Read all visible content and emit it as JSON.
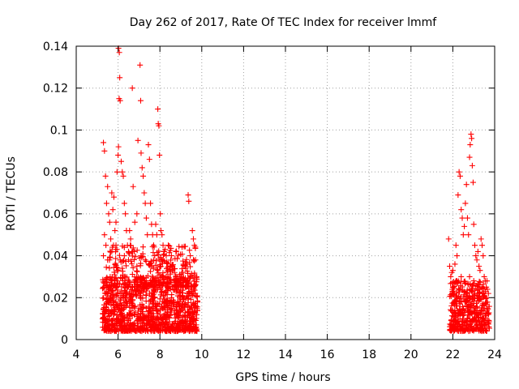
{
  "chart_data": {
    "type": "scatter",
    "title": "Day 262 of 2017, Rate Of TEC Index for receiver lmmf",
    "xlabel": "GPS time / hours",
    "ylabel": "ROTI / TECUs",
    "xlim": [
      4,
      24
    ],
    "ylim": [
      0,
      0.14
    ],
    "x_ticks": [
      "4",
      "6",
      "8",
      "10",
      "12",
      "14",
      "16",
      "18",
      "20",
      "22",
      "24"
    ],
    "y_ticks": [
      "0",
      "0.02",
      "0.04",
      "0.06",
      "0.08",
      "0.1",
      "0.12",
      "0.14"
    ],
    "grid": true,
    "marker": "+",
    "color": "#ff0000",
    "series": [
      {
        "points": [
          [
            5.3,
            0.094
          ],
          [
            5.35,
            0.09
          ],
          [
            5.4,
            0.078
          ],
          [
            5.5,
            0.073
          ],
          [
            5.45,
            0.065
          ],
          [
            5.35,
            0.05
          ],
          [
            5.42,
            0.045
          ],
          [
            5.55,
            0.06
          ],
          [
            5.6,
            0.056
          ],
          [
            5.65,
            0.048
          ],
          [
            5.7,
            0.07
          ],
          [
            5.8,
            0.068
          ],
          [
            5.75,
            0.062
          ],
          [
            5.85,
            0.052
          ],
          [
            5.9,
            0.056
          ],
          [
            5.95,
            0.08
          ],
          [
            6.0,
            0.088
          ],
          [
            6.02,
            0.092
          ],
          [
            6.05,
            0.115
          ],
          [
            6.08,
            0.125
          ],
          [
            6.02,
            0.139
          ],
          [
            6.06,
            0.137
          ],
          [
            6.1,
            0.114
          ],
          [
            6.15,
            0.085
          ],
          [
            6.2,
            0.08
          ],
          [
            6.25,
            0.078
          ],
          [
            6.3,
            0.065
          ],
          [
            6.35,
            0.06
          ],
          [
            6.4,
            0.052
          ],
          [
            6.45,
            0.045
          ],
          [
            6.5,
            0.042
          ],
          [
            6.55,
            0.052
          ],
          [
            6.6,
            0.048
          ],
          [
            6.68,
            0.12
          ],
          [
            6.72,
            0.073
          ],
          [
            6.8,
            0.056
          ],
          [
            6.9,
            0.06
          ],
          [
            6.95,
            0.095
          ],
          [
            7.05,
            0.131
          ],
          [
            7.08,
            0.114
          ],
          [
            7.1,
            0.089
          ],
          [
            7.15,
            0.082
          ],
          [
            7.2,
            0.078
          ],
          [
            7.25,
            0.07
          ],
          [
            7.3,
            0.065
          ],
          [
            7.35,
            0.058
          ],
          [
            7.4,
            0.05
          ],
          [
            7.45,
            0.093
          ],
          [
            7.5,
            0.086
          ],
          [
            7.55,
            0.065
          ],
          [
            7.6,
            0.055
          ],
          [
            7.65,
            0.05
          ],
          [
            7.7,
            0.045
          ],
          [
            7.75,
            0.04
          ],
          [
            7.8,
            0.055
          ],
          [
            7.85,
            0.05
          ],
          [
            7.9,
            0.11
          ],
          [
            7.92,
            0.103
          ],
          [
            7.95,
            0.102
          ],
          [
            7.98,
            0.088
          ],
          [
            8.02,
            0.06
          ],
          [
            8.05,
            0.052
          ],
          [
            8.1,
            0.05
          ],
          [
            8.15,
            0.045
          ],
          [
            8.2,
            0.042
          ],
          [
            8.3,
            0.04
          ],
          [
            8.4,
            0.045
          ],
          [
            8.5,
            0.035
          ],
          [
            8.55,
            0.04
          ],
          [
            8.6,
            0.033
          ],
          [
            8.7,
            0.032
          ],
          [
            8.8,
            0.03
          ],
          [
            8.9,
            0.028
          ],
          [
            9.0,
            0.03
          ],
          [
            9.1,
            0.032
          ],
          [
            9.2,
            0.035
          ],
          [
            9.3,
            0.036
          ],
          [
            9.35,
            0.069
          ],
          [
            9.38,
            0.066
          ],
          [
            9.45,
            0.04
          ],
          [
            9.55,
            0.052
          ],
          [
            9.6,
            0.048
          ],
          [
            9.65,
            0.045
          ],
          [
            9.7,
            0.038
          ],
          [
            9.75,
            0.03
          ],
          [
            5.3,
            0.04
          ],
          [
            5.5,
            0.038
          ],
          [
            5.7,
            0.042
          ],
          [
            5.9,
            0.045
          ],
          [
            6.1,
            0.038
          ],
          [
            6.3,
            0.04
          ],
          [
            6.5,
            0.038
          ],
          [
            6.7,
            0.042
          ],
          [
            6.9,
            0.035
          ],
          [
            7.1,
            0.04
          ],
          [
            7.3,
            0.038
          ],
          [
            7.5,
            0.036
          ],
          [
            7.7,
            0.034
          ],
          [
            7.9,
            0.033
          ],
          [
            8.1,
            0.03
          ],
          [
            8.3,
            0.03
          ],
          [
            8.5,
            0.028
          ],
          [
            8.7,
            0.026
          ],
          [
            8.9,
            0.025
          ],
          [
            9.1,
            0.026
          ],
          [
            9.3,
            0.028
          ],
          [
            9.5,
            0.025
          ],
          [
            9.7,
            0.026
          ],
          [
            21.8,
            0.048
          ],
          [
            21.85,
            0.035
          ],
          [
            21.9,
            0.03
          ],
          [
            21.95,
            0.032
          ],
          [
            22.0,
            0.033
          ],
          [
            22.1,
            0.036
          ],
          [
            22.15,
            0.045
          ],
          [
            22.2,
            0.04
          ],
          [
            22.25,
            0.069
          ],
          [
            22.3,
            0.08
          ],
          [
            22.35,
            0.078
          ],
          [
            22.4,
            0.062
          ],
          [
            22.45,
            0.058
          ],
          [
            22.5,
            0.05
          ],
          [
            22.55,
            0.054
          ],
          [
            22.6,
            0.065
          ],
          [
            22.65,
            0.074
          ],
          [
            22.7,
            0.058
          ],
          [
            22.75,
            0.05
          ],
          [
            22.8,
            0.087
          ],
          [
            22.83,
            0.093
          ],
          [
            22.87,
            0.098
          ],
          [
            22.9,
            0.096
          ],
          [
            22.93,
            0.083
          ],
          [
            22.97,
            0.075
          ],
          [
            23.0,
            0.055
          ],
          [
            23.05,
            0.045
          ],
          [
            23.1,
            0.04
          ],
          [
            23.15,
            0.038
          ],
          [
            23.2,
            0.042
          ],
          [
            23.25,
            0.035
          ],
          [
            23.3,
            0.033
          ],
          [
            23.35,
            0.048
          ],
          [
            23.4,
            0.045
          ],
          [
            23.45,
            0.04
          ],
          [
            23.5,
            0.03
          ],
          [
            23.55,
            0.028
          ],
          [
            23.6,
            0.025
          ],
          [
            23.65,
            0.024
          ],
          [
            23.7,
            0.022
          ],
          [
            22.0,
            0.025
          ],
          [
            22.2,
            0.028
          ],
          [
            22.4,
            0.03
          ],
          [
            22.6,
            0.027
          ],
          [
            22.8,
            0.03
          ],
          [
            23.0,
            0.028
          ],
          [
            23.2,
            0.026
          ],
          [
            23.4,
            0.025
          ],
          [
            23.6,
            0.02
          ]
        ]
      }
    ],
    "dense_bands": [
      {
        "x_range": [
          5.25,
          9.8
        ],
        "y_range": [
          0.004,
          0.03
        ],
        "count": 1100
      },
      {
        "x_range": [
          5.3,
          9.7
        ],
        "y_range": [
          0.025,
          0.045
        ],
        "count": 260
      },
      {
        "x_range": [
          21.85,
          23.75
        ],
        "y_range": [
          0.004,
          0.028
        ],
        "count": 420
      }
    ]
  }
}
